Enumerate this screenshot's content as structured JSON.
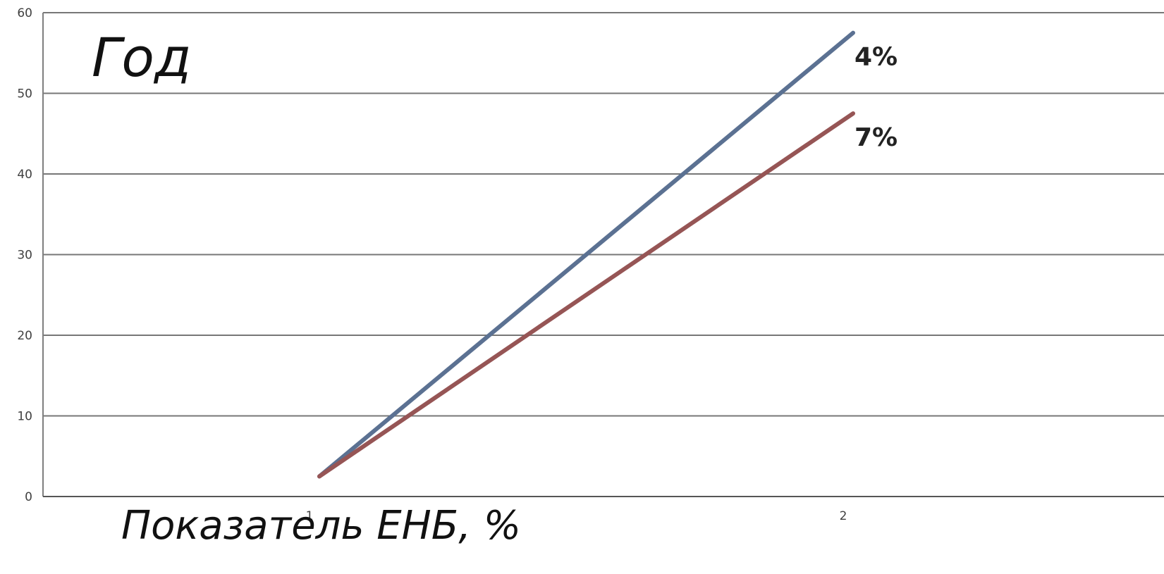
{
  "chart_data": {
    "type": "line",
    "title": "",
    "xlabel": "Показатель ЕНБ, %",
    "ylabel": "Год",
    "categories": [
      "1",
      "2"
    ],
    "ylim": [
      0,
      60
    ],
    "yticks": [
      "0",
      "10",
      "20",
      "30",
      "40",
      "50",
      "60"
    ],
    "grid": true,
    "series": [
      {
        "name": "4%",
        "values": [
          2.5,
          57.5
        ],
        "color": "#5b7192"
      },
      {
        "name": "7%",
        "values": [
          2.5,
          47.5
        ],
        "color": "#965555"
      }
    ]
  }
}
